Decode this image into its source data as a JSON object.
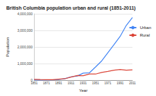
{
  "chart_data": {
    "type": "line",
    "title": "British Columbia population urban and rural (1851-2011)",
    "x_label": "Year",
    "y_label": "Population",
    "categories": [
      "1851",
      null,
      "1871",
      null,
      "1891",
      null,
      "1911",
      null,
      "1931",
      null,
      "1951",
      null,
      "1971",
      null,
      "1991",
      null,
      "2011"
    ],
    "series": [
      {
        "name": "Urban",
        "color": "#4285f4",
        "values": [
          10000,
          10000,
          9000,
          19000,
          36000,
          90000,
          203000,
          248000,
          427000,
          443000,
          795000,
          1160000,
          1654000,
          2139000,
          2640000,
          3300000,
          3780000
        ]
      },
      {
        "name": "Rural",
        "color": "#db4437",
        "values": [
          55000,
          40000,
          27000,
          30000,
          62000,
          89000,
          189000,
          277000,
          267000,
          375000,
          370000,
          470000,
          530000,
          605000,
          643000,
          600000,
          620000
        ]
      }
    ],
    "ylim": [
      0,
      4000000
    ],
    "yticks": [
      0,
      {
        "value": 1000000,
        "label": "1,000,000"
      },
      {
        "value": 2000000,
        "label": "2,000,000"
      },
      {
        "value": 3000000,
        "label": "3,000,000"
      },
      {
        "value": 4000000,
        "label": "4,000,000"
      }
    ],
    "grid": true,
    "legend": "right"
  }
}
